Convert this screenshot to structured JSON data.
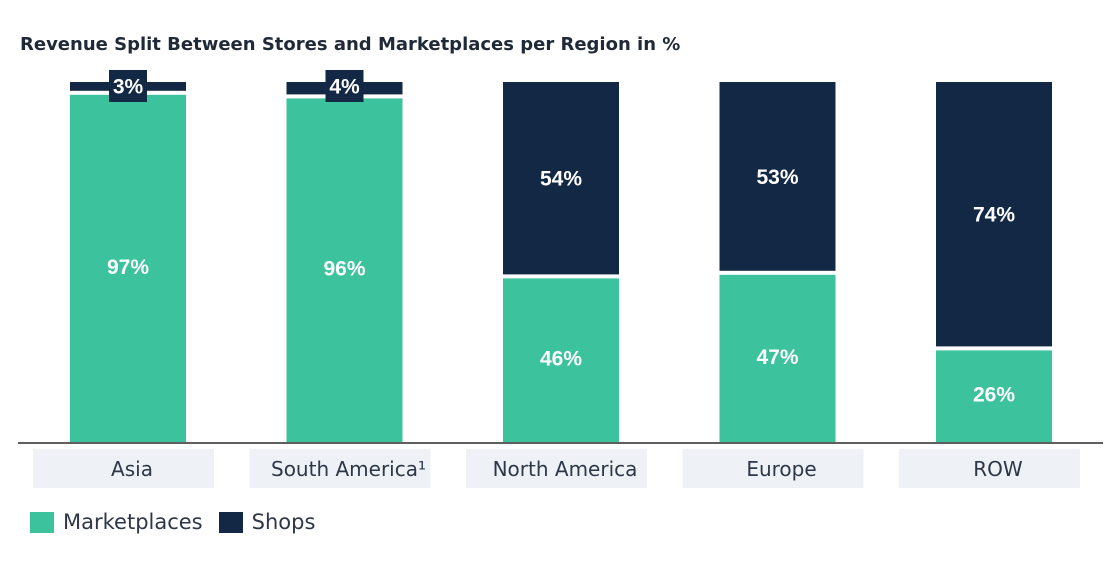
{
  "title": "Revenue Split Between Stores and Marketplaces per Region in %",
  "colors": {
    "marketplaces": "#3cc29c",
    "shops": "#132844",
    "axis": "#2a2a2a",
    "category_bg": "#eef2f6"
  },
  "legend": [
    {
      "key": "marketplaces",
      "label": "Marketplaces"
    },
    {
      "key": "shops",
      "label": "Shops"
    }
  ],
  "chart_data": {
    "type": "bar",
    "stacked": true,
    "title": "Revenue Split Between Stores and Marketplaces per Region in %",
    "categories": [
      "Asia",
      "South America¹",
      "North America",
      "Europe",
      "ROW"
    ],
    "series": [
      {
        "name": "Marketplaces",
        "values": [
          97,
          96,
          46,
          47,
          26
        ],
        "labels": [
          "97%",
          "96%",
          "46%",
          "47%",
          "26%"
        ]
      },
      {
        "name": "Shops",
        "values": [
          3,
          4,
          54,
          53,
          74
        ],
        "labels": [
          "3%",
          "4%",
          "54%",
          "53%",
          "74%"
        ]
      }
    ],
    "ylim": [
      0,
      100
    ],
    "grid": false,
    "legend_position": "bottom-left"
  }
}
